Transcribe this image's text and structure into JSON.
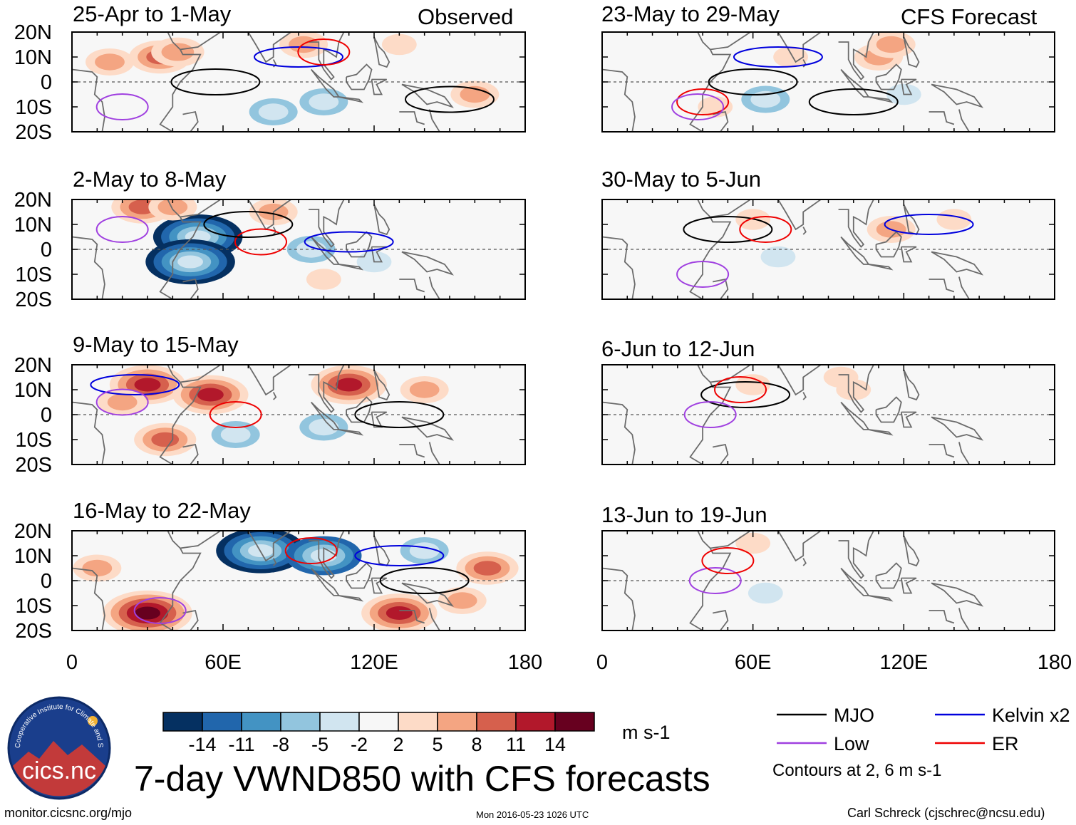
{
  "main_title": "7-day VWND850 with CFS forecasts",
  "column_labels": {
    "left": "Observed",
    "right": "CFS Forecast"
  },
  "footer": {
    "url": "monitor.cicsnc.org/mjo",
    "timestamp": "Mon 2016-05-23 1026 UTC",
    "author": "Carl Schreck (cjschrec@ncsu.edu)"
  },
  "logo": {
    "text": "cics.nc",
    "ring_text": "Cooperative Institute for Climate and Satellites"
  },
  "colorbar": {
    "unit": "m s-1",
    "tick_labels": [
      "-14",
      "-11",
      "-8",
      "-5",
      "-2",
      "2",
      "5",
      "8",
      "11",
      "14"
    ],
    "colors": [
      "#053061",
      "#2166ac",
      "#4393c3",
      "#92c5de",
      "#d1e5f0",
      "#f7f7f7",
      "#fddbc7",
      "#f4a582",
      "#d6604d",
      "#b2182b",
      "#67001f"
    ]
  },
  "legend": {
    "items": [
      {
        "label": "MJO",
        "color": "#000000"
      },
      {
        "label": "Kelvin x2",
        "color": "#0000dd"
      },
      {
        "label": "Low",
        "color": "#a040e0"
      },
      {
        "label": "ER",
        "color": "#ee0000"
      }
    ],
    "note": "Contours at 2, 6 m s-1"
  },
  "chart_data": {
    "type": "heatmap",
    "variable": "VWND850",
    "x_ticks": [
      "0",
      "60E",
      "120E",
      "180"
    ],
    "y_ticks": [
      "20N",
      "10N",
      "0",
      "10S",
      "20S"
    ],
    "xlim": [
      0,
      180
    ],
    "ylim": [
      -20,
      20
    ],
    "panels": [
      {
        "id": "obs-1",
        "column": "Observed",
        "title": "25-Apr to 1-May",
        "field": [
          {
            "lon": 35,
            "lat": 10,
            "value": 8
          },
          {
            "lon": 42,
            "lat": 12,
            "value": 6
          },
          {
            "lon": 15,
            "lat": 8,
            "value": 5
          },
          {
            "lon": 92,
            "lat": 15,
            "value": 5
          },
          {
            "lon": 80,
            "lat": -12,
            "value": -5
          },
          {
            "lon": 100,
            "lat": -8,
            "value": -5
          },
          {
            "lon": 160,
            "lat": -5,
            "value": 5
          },
          {
            "lon": 130,
            "lat": 15,
            "value": 2
          }
        ],
        "contours": [
          {
            "kind": "MJO",
            "lon": 57,
            "lat": 0,
            "value": 2
          },
          {
            "kind": "MJO",
            "lon": 150,
            "lat": -7,
            "value": 2
          },
          {
            "kind": "Kelvin",
            "lon": 90,
            "lat": 10,
            "value": 2
          },
          {
            "kind": "ER",
            "lon": 100,
            "lat": 12,
            "value": 2
          },
          {
            "kind": "Low",
            "lon": 20,
            "lat": -10,
            "value": 2
          }
        ]
      },
      {
        "id": "obs-2",
        "column": "Observed",
        "title": "2-May to 8-May",
        "field": [
          {
            "lon": 50,
            "lat": 5,
            "value": -14
          },
          {
            "lon": 47,
            "lat": -5,
            "value": -14
          },
          {
            "lon": 28,
            "lat": 17,
            "value": 8
          },
          {
            "lon": 80,
            "lat": 15,
            "value": 5
          },
          {
            "lon": 40,
            "lat": 17,
            "value": 5
          },
          {
            "lon": 95,
            "lat": 0,
            "value": -5
          },
          {
            "lon": 120,
            "lat": -5,
            "value": -2
          },
          {
            "lon": 100,
            "lat": -12,
            "value": 2
          }
        ],
        "contours": [
          {
            "kind": "Kelvin",
            "lon": 110,
            "lat": 3,
            "value": 2
          },
          {
            "kind": "ER",
            "lon": 75,
            "lat": 3,
            "value": 2
          },
          {
            "kind": "MJO",
            "lon": 70,
            "lat": 10,
            "value": 2
          },
          {
            "kind": "Low",
            "lon": 20,
            "lat": 8,
            "value": 2
          }
        ]
      },
      {
        "id": "obs-3",
        "column": "Observed",
        "title": "9-May to 15-May",
        "field": [
          {
            "lon": 30,
            "lat": 12,
            "value": 11
          },
          {
            "lon": 55,
            "lat": 8,
            "value": 11
          },
          {
            "lon": 110,
            "lat": 12,
            "value": 11
          },
          {
            "lon": 20,
            "lat": 5,
            "value": 5
          },
          {
            "lon": 65,
            "lat": -8,
            "value": -5
          },
          {
            "lon": 100,
            "lat": -5,
            "value": -5
          },
          {
            "lon": 140,
            "lat": 10,
            "value": 5
          },
          {
            "lon": 37,
            "lat": -10,
            "value": 8
          }
        ],
        "contours": [
          {
            "kind": "Kelvin",
            "lon": 25,
            "lat": 12,
            "value": 2
          },
          {
            "kind": "MJO",
            "lon": 130,
            "lat": 0,
            "value": 2
          },
          {
            "kind": "ER",
            "lon": 65,
            "lat": 0,
            "value": 2
          },
          {
            "kind": "Low",
            "lon": 20,
            "lat": 5,
            "value": 2
          }
        ]
      },
      {
        "id": "obs-4",
        "column": "Observed",
        "title": "16-May to 22-May",
        "field": [
          {
            "lon": 75,
            "lat": 12,
            "value": -14
          },
          {
            "lon": 100,
            "lat": 10,
            "value": -11
          },
          {
            "lon": 30,
            "lat": -13,
            "value": 14
          },
          {
            "lon": 130,
            "lat": -13,
            "value": 11
          },
          {
            "lon": 165,
            "lat": 5,
            "value": 8
          },
          {
            "lon": 155,
            "lat": -8,
            "value": 5
          },
          {
            "lon": 10,
            "lat": 5,
            "value": 5
          },
          {
            "lon": 140,
            "lat": 12,
            "value": -5
          }
        ],
        "contours": [
          {
            "kind": "Kelvin",
            "lon": 130,
            "lat": 10,
            "value": 2
          },
          {
            "kind": "MJO",
            "lon": 140,
            "lat": 0,
            "value": 2
          },
          {
            "kind": "Low",
            "lon": 35,
            "lat": -12,
            "value": 2
          },
          {
            "kind": "ER",
            "lon": 95,
            "lat": 12,
            "value": 2
          }
        ]
      },
      {
        "id": "fcst-1",
        "column": "CFS Forecast",
        "title": "23-May to 29-May",
        "field": [
          {
            "lon": 65,
            "lat": -7,
            "value": -5
          },
          {
            "lon": 75,
            "lat": 10,
            "value": 2
          },
          {
            "lon": 110,
            "lat": 10,
            "value": 5
          },
          {
            "lon": 120,
            "lat": -5,
            "value": -2
          },
          {
            "lon": 45,
            "lat": -10,
            "value": 2
          },
          {
            "lon": 115,
            "lat": 15,
            "value": 5
          }
        ],
        "contours": [
          {
            "kind": "MJO",
            "lon": 60,
            "lat": 0,
            "value": 2
          },
          {
            "kind": "MJO",
            "lon": 100,
            "lat": -8,
            "value": 2
          },
          {
            "kind": "Kelvin",
            "lon": 70,
            "lat": 10,
            "value": 2
          },
          {
            "kind": "ER",
            "lon": 40,
            "lat": -8,
            "value": 2
          },
          {
            "kind": "Low",
            "lon": 38,
            "lat": -10,
            "value": 2
          }
        ]
      },
      {
        "id": "fcst-2",
        "column": "CFS Forecast",
        "title": "30-May to 5-Jun",
        "field": [
          {
            "lon": 60,
            "lat": 12,
            "value": 2
          },
          {
            "lon": 115,
            "lat": 8,
            "value": 5
          },
          {
            "lon": 70,
            "lat": -3,
            "value": -2
          },
          {
            "lon": 140,
            "lat": 12,
            "value": 2
          }
        ],
        "contours": [
          {
            "kind": "MJO",
            "lon": 50,
            "lat": 8,
            "value": 2
          },
          {
            "kind": "ER",
            "lon": 65,
            "lat": 8,
            "value": 2
          },
          {
            "kind": "Kelvin",
            "lon": 130,
            "lat": 10,
            "value": 2
          },
          {
            "kind": "Low",
            "lon": 40,
            "lat": -10,
            "value": 2
          }
        ]
      },
      {
        "id": "fcst-3",
        "column": "CFS Forecast",
        "title": "6-Jun to 12-Jun",
        "field": [
          {
            "lon": 60,
            "lat": 12,
            "value": 2
          },
          {
            "lon": 95,
            "lat": 15,
            "value": 2
          },
          {
            "lon": 100,
            "lat": 10,
            "value": 2
          }
        ],
        "contours": [
          {
            "kind": "MJO",
            "lon": 57,
            "lat": 8,
            "value": 2
          },
          {
            "kind": "ER",
            "lon": 55,
            "lat": 10,
            "value": 2
          },
          {
            "kind": "Low",
            "lon": 43,
            "lat": 0,
            "value": 2
          }
        ]
      },
      {
        "id": "fcst-4",
        "column": "CFS Forecast",
        "title": "13-Jun to 19-Jun",
        "field": [
          {
            "lon": 65,
            "lat": -5,
            "value": -2
          },
          {
            "lon": 60,
            "lat": 15,
            "value": 2
          }
        ],
        "contours": [
          {
            "kind": "Low",
            "lon": 45,
            "lat": 0,
            "value": 2
          },
          {
            "kind": "ER",
            "lon": 50,
            "lat": 8,
            "value": 2
          }
        ]
      }
    ]
  }
}
